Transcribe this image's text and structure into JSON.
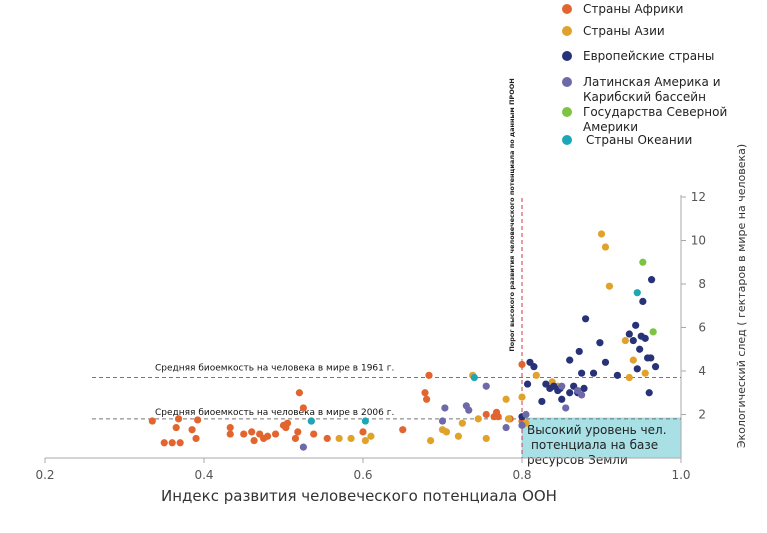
{
  "chart_data": {
    "type": "scatter",
    "xlabel": "Индекс развития человеческого потенциала ООН",
    "ylabel": "Экологический след ( гектаров в мире на человека)",
    "xlim": [
      0.2,
      1.0
    ],
    "ylim": [
      0,
      12
    ],
    "x_ticks": [
      "0.2",
      "0.4",
      "0.6",
      "0.8",
      "1.0"
    ],
    "y_ticks": [
      "2",
      "4",
      "6",
      "8",
      "10",
      "12"
    ],
    "reference_lines": [
      {
        "name": "Средняя биоемкость на человека в мире в 1961 г.",
        "y": 3.7,
        "orientation": "horizontal"
      },
      {
        "name": "Средняя биоемкость на человека в мире в 2006 г.",
        "y": 1.8,
        "orientation": "horizontal"
      },
      {
        "name": "Порог высокого развития человеческого потенциала по данным ПРООН",
        "x": 0.8,
        "orientation": "vertical"
      }
    ],
    "highlight_box": {
      "text": [
        "Высокий уровень чел.",
        "потенциала на базе",
        "ресурсов Земли"
      ]
    },
    "legend_position": "top-right",
    "series": [
      {
        "name": "Страны Африки",
        "color": "#e2652f",
        "points": [
          [
            0.335,
            1.7
          ],
          [
            0.35,
            0.7
          ],
          [
            0.36,
            0.7
          ],
          [
            0.365,
            1.4
          ],
          [
            0.368,
            1.8
          ],
          [
            0.37,
            0.7
          ],
          [
            0.385,
            1.3
          ],
          [
            0.39,
            0.9
          ],
          [
            0.392,
            1.75
          ],
          [
            0.433,
            1.4
          ],
          [
            0.433,
            1.1
          ],
          [
            0.45,
            1.1
          ],
          [
            0.46,
            1.2
          ],
          [
            0.463,
            0.8
          ],
          [
            0.47,
            1.1
          ],
          [
            0.475,
            0.9
          ],
          [
            0.48,
            1.0
          ],
          [
            0.49,
            1.1
          ],
          [
            0.5,
            1.5
          ],
          [
            0.503,
            1.4
          ],
          [
            0.505,
            1.6
          ],
          [
            0.515,
            0.9
          ],
          [
            0.518,
            1.2
          ],
          [
            0.52,
            3.0
          ],
          [
            0.525,
            2.3
          ],
          [
            0.535,
            1.7
          ],
          [
            0.538,
            1.1
          ],
          [
            0.555,
            0.9
          ],
          [
            0.6,
            1.2
          ],
          [
            0.65,
            1.3
          ],
          [
            0.678,
            3.0
          ],
          [
            0.68,
            2.7
          ],
          [
            0.683,
            3.8
          ],
          [
            0.755,
            2.0
          ],
          [
            0.765,
            1.9
          ],
          [
            0.768,
            2.1
          ],
          [
            0.77,
            1.9
          ],
          [
            0.785,
            1.8
          ],
          [
            0.8,
            4.3
          ],
          [
            0.8,
            1.7
          ]
        ]
      },
      {
        "name": "Страны Азии",
        "color": "#e0a22a",
        "points": [
          [
            0.57,
            0.9
          ],
          [
            0.585,
            0.9
          ],
          [
            0.603,
            0.8
          ],
          [
            0.61,
            1.0
          ],
          [
            0.685,
            0.8
          ],
          [
            0.7,
            1.3
          ],
          [
            0.705,
            1.2
          ],
          [
            0.72,
            1.0
          ],
          [
            0.725,
            1.6
          ],
          [
            0.738,
            3.8
          ],
          [
            0.745,
            1.8
          ],
          [
            0.755,
            0.9
          ],
          [
            0.78,
            2.7
          ],
          [
            0.783,
            1.8
          ],
          [
            0.8,
            2.8
          ],
          [
            0.805,
            1.6
          ],
          [
            0.818,
            3.8
          ],
          [
            0.838,
            3.5
          ],
          [
            0.845,
            3.3
          ],
          [
            0.9,
            10.3
          ],
          [
            0.905,
            9.7
          ],
          [
            0.91,
            7.9
          ],
          [
            0.93,
            5.4
          ],
          [
            0.935,
            3.7
          ],
          [
            0.94,
            4.5
          ],
          [
            0.955,
            3.9
          ]
        ]
      },
      {
        "name": "Европейские страны",
        "color": "#283278",
        "points": [
          [
            0.8,
            1.9
          ],
          [
            0.807,
            3.4
          ],
          [
            0.81,
            4.4
          ],
          [
            0.815,
            4.2
          ],
          [
            0.825,
            2.6
          ],
          [
            0.83,
            3.4
          ],
          [
            0.835,
            3.2
          ],
          [
            0.84,
            3.3
          ],
          [
            0.845,
            3.1
          ],
          [
            0.848,
            3.2
          ],
          [
            0.85,
            2.7
          ],
          [
            0.86,
            4.5
          ],
          [
            0.86,
            3.0
          ],
          [
            0.865,
            3.3
          ],
          [
            0.87,
            3.0
          ],
          [
            0.872,
            4.9
          ],
          [
            0.875,
            3.9
          ],
          [
            0.878,
            3.2
          ],
          [
            0.88,
            6.4
          ],
          [
            0.89,
            3.9
          ],
          [
            0.898,
            5.3
          ],
          [
            0.905,
            4.4
          ],
          [
            0.92,
            3.8
          ],
          [
            0.935,
            5.7
          ],
          [
            0.94,
            5.4
          ],
          [
            0.943,
            6.1
          ],
          [
            0.945,
            4.1
          ],
          [
            0.948,
            5.0
          ],
          [
            0.95,
            5.6
          ],
          [
            0.952,
            7.2
          ],
          [
            0.955,
            5.5
          ],
          [
            0.958,
            4.6
          ],
          [
            0.96,
            3.0
          ],
          [
            0.962,
            4.6
          ],
          [
            0.963,
            8.2
          ],
          [
            0.968,
            4.2
          ]
        ]
      },
      {
        "name": "Латинская Америка и Карибский бассейн",
        "color": "#6e6aaa",
        "points": [
          [
            0.525,
            0.5
          ],
          [
            0.7,
            1.7
          ],
          [
            0.703,
            2.3
          ],
          [
            0.73,
            2.4
          ],
          [
            0.733,
            2.2
          ],
          [
            0.755,
            3.3
          ],
          [
            0.78,
            1.4
          ],
          [
            0.8,
            1.5
          ],
          [
            0.805,
            2.0
          ],
          [
            0.85,
            3.3
          ],
          [
            0.855,
            2.3
          ],
          [
            0.87,
            3.1
          ],
          [
            0.875,
            2.9
          ]
        ]
      },
      {
        "name": "Государства Северной Америки",
        "color": "#7dc443",
        "points": [
          [
            0.952,
            9.0
          ],
          [
            0.965,
            5.8
          ]
        ]
      },
      {
        "name": "Страны Океании",
        "color": "#1aa8b9",
        "points": [
          [
            0.535,
            1.7
          ],
          [
            0.603,
            1.7
          ],
          [
            0.74,
            3.7
          ],
          [
            0.945,
            7.6
          ]
        ]
      }
    ]
  }
}
